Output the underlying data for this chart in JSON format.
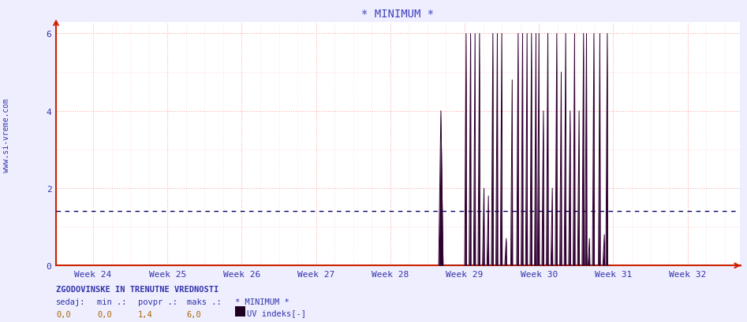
{
  "title": "* MINIMUM *",
  "title_color": "#4040c0",
  "title_fontsize": 10,
  "bg_color": "#eeeeff",
  "plot_bg_color": "#ffffff",
  "ylabel_text": "www.si-vreme.com",
  "ylim": [
    0,
    6.3
  ],
  "yticks": [
    0,
    2,
    4,
    6
  ],
  "week_labels": [
    "Week 24",
    "Week 25",
    "Week 26",
    "Week 27",
    "Week 28",
    "Week 29",
    "Week 30",
    "Week 31",
    "Week 32"
  ],
  "week_positions": [
    24,
    25,
    26,
    27,
    28,
    29,
    30,
    31,
    32
  ],
  "xlim": [
    23.5,
    32.7
  ],
  "grid_color_major": "#ffaaaa",
  "grid_color_minor": "#ffcccc",
  "dotted_line_y": 1.4,
  "dotted_line_color": "#000066",
  "axis_color": "#cc2200",
  "tick_color": "#3333aa",
  "footer_line1": "ZGODOVINSKE IN TRENUTNE VREDNOSTI",
  "footer_col1_label": "sedaj:",
  "footer_col2_label": "min .:",
  "footer_col3_label": "povpr .:",
  "footer_col4_label": "maks .:",
  "footer_col5_label": "* MINIMUM *",
  "footer_col1_val": "0,0",
  "footer_col2_val": "0,0",
  "footer_col3_val": "1,4",
  "footer_col4_val": "6,0",
  "footer_legend_color": "#200020",
  "footer_legend_label": "UV indeks[-]",
  "uv_data": [
    [
      28.65,
      0
    ],
    [
      28.68,
      4.0
    ],
    [
      28.71,
      0
    ],
    [
      29.0,
      0
    ],
    [
      29.02,
      6.0
    ],
    [
      29.025,
      0
    ],
    [
      29.06,
      0
    ],
    [
      29.08,
      6.0
    ],
    [
      29.085,
      0
    ],
    [
      29.12,
      0
    ],
    [
      29.14,
      6.0
    ],
    [
      29.145,
      0
    ],
    [
      29.18,
      0
    ],
    [
      29.2,
      6.0
    ],
    [
      29.205,
      0
    ],
    [
      29.24,
      0
    ],
    [
      29.26,
      2.0
    ],
    [
      29.265,
      0
    ],
    [
      29.3,
      0
    ],
    [
      29.32,
      1.8
    ],
    [
      29.325,
      0
    ],
    [
      29.36,
      0
    ],
    [
      29.38,
      6.0
    ],
    [
      29.385,
      0
    ],
    [
      29.42,
      0
    ],
    [
      29.44,
      6.0
    ],
    [
      29.445,
      0
    ],
    [
      29.48,
      0
    ],
    [
      29.5,
      6.0
    ],
    [
      29.505,
      0
    ],
    [
      29.54,
      0
    ],
    [
      29.56,
      0.7
    ],
    [
      29.565,
      0
    ],
    [
      29.62,
      0
    ],
    [
      29.64,
      4.8
    ],
    [
      29.645,
      0
    ],
    [
      29.7,
      0
    ],
    [
      29.72,
      6.0
    ],
    [
      29.725,
      0
    ],
    [
      29.76,
      0
    ],
    [
      29.78,
      6.0
    ],
    [
      29.785,
      0
    ],
    [
      29.82,
      0
    ],
    [
      29.84,
      6.0
    ],
    [
      29.845,
      0
    ],
    [
      29.88,
      0
    ],
    [
      29.9,
      6.0
    ],
    [
      29.905,
      0
    ],
    [
      29.94,
      0
    ],
    [
      29.96,
      6.0
    ],
    [
      29.965,
      0
    ],
    [
      29.98,
      0
    ],
    [
      30.0,
      6.0
    ],
    [
      30.005,
      0
    ],
    [
      30.04,
      0
    ],
    [
      30.06,
      4.0
    ],
    [
      30.065,
      0
    ],
    [
      30.1,
      0
    ],
    [
      30.12,
      6.0
    ],
    [
      30.125,
      0
    ],
    [
      30.16,
      0
    ],
    [
      30.18,
      2.0
    ],
    [
      30.185,
      0
    ],
    [
      30.22,
      0
    ],
    [
      30.24,
      6.0
    ],
    [
      30.245,
      0
    ],
    [
      30.28,
      0
    ],
    [
      30.3,
      5.0
    ],
    [
      30.305,
      0
    ],
    [
      30.34,
      0
    ],
    [
      30.36,
      6.0
    ],
    [
      30.365,
      0
    ],
    [
      30.4,
      0
    ],
    [
      30.42,
      4.0
    ],
    [
      30.425,
      0
    ],
    [
      30.46,
      0
    ],
    [
      30.48,
      6.0
    ],
    [
      30.485,
      0
    ],
    [
      30.52,
      0
    ],
    [
      30.54,
      4.0
    ],
    [
      30.545,
      0
    ],
    [
      30.58,
      0
    ],
    [
      30.6,
      6.0
    ],
    [
      30.605,
      0
    ],
    [
      30.62,
      0
    ],
    [
      30.64,
      6.0
    ],
    [
      30.645,
      0
    ],
    [
      30.66,
      0
    ],
    [
      30.68,
      0.7
    ],
    [
      30.685,
      0
    ],
    [
      30.72,
      0
    ],
    [
      30.74,
      6.0
    ],
    [
      30.745,
      0
    ],
    [
      30.8,
      0
    ],
    [
      30.82,
      6.0
    ],
    [
      30.825,
      0
    ],
    [
      30.86,
      0
    ],
    [
      30.88,
      0.8
    ],
    [
      30.885,
      0
    ],
    [
      30.9,
      0
    ],
    [
      30.92,
      6.0
    ],
    [
      30.925,
      0
    ],
    [
      30.96,
      0
    ]
  ],
  "line_color_dark": "#300030",
  "line_color_light": "#9080a0"
}
